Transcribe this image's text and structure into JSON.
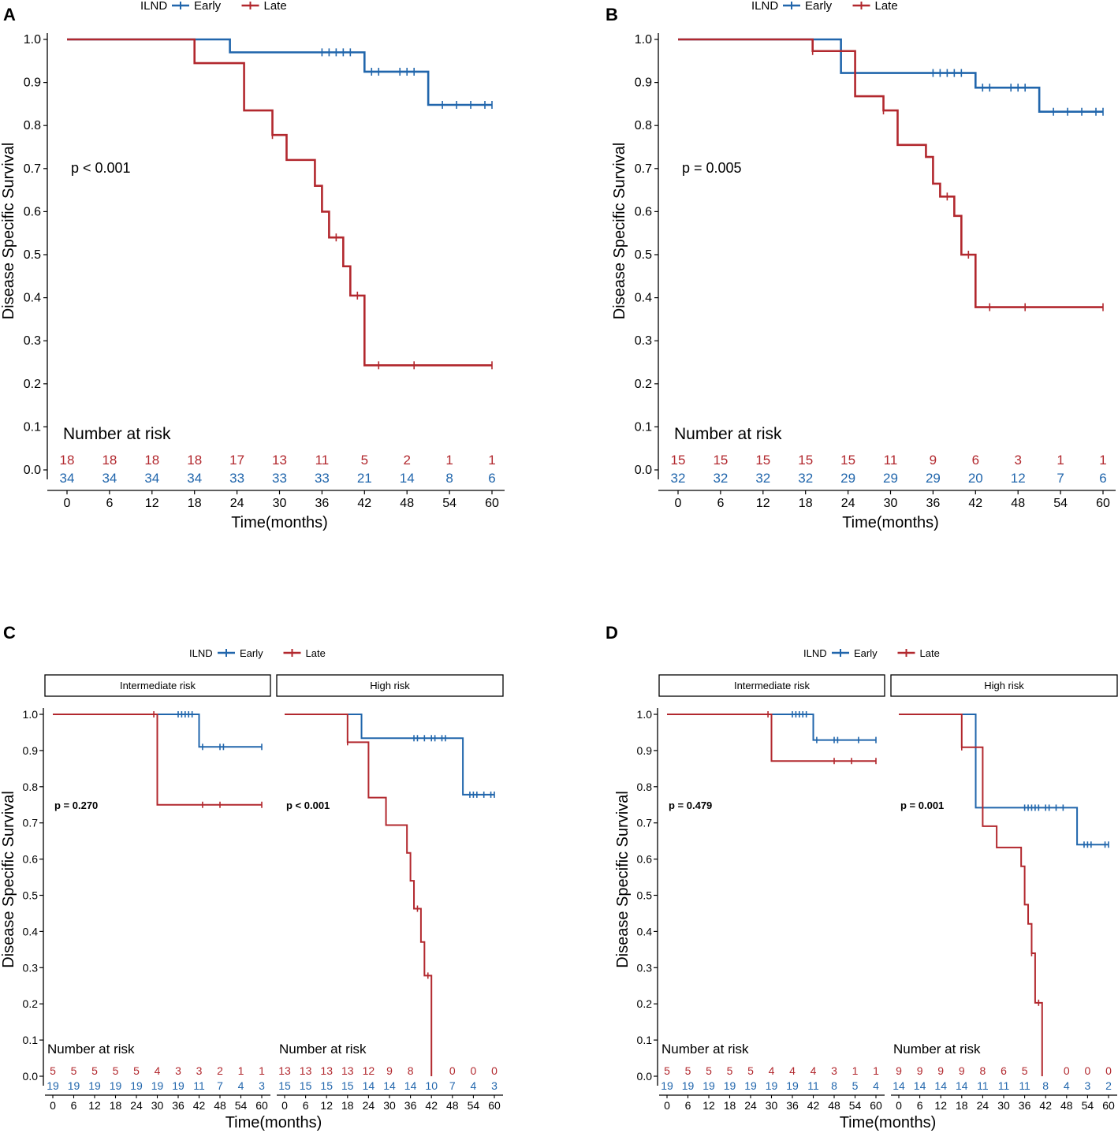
{
  "figure": {
    "legend_title": "ILND",
    "legend_labels": [
      "Early",
      "Late"
    ]
  },
  "chart_data": [
    {
      "panel": "A",
      "type": "line",
      "title": "",
      "xlabel": "Time(months)",
      "ylabel": "Disease Specific Survival",
      "xlim": [
        0,
        60
      ],
      "ylim": [
        0,
        1
      ],
      "x_ticks": [
        "0",
        "6",
        "12",
        "18",
        "24",
        "30",
        "36",
        "42",
        "48",
        "54",
        "60"
      ],
      "y_ticks": [
        "0.0",
        "0.1",
        "0.2",
        "0.3",
        "0.4",
        "0.5",
        "0.6",
        "0.7",
        "0.8",
        "0.9",
        "1.0"
      ],
      "p_value": "p < 0.001",
      "risk_title": "Number at risk",
      "risk_table": {
        "Late": [
          "18",
          "18",
          "18",
          "18",
          "17",
          "13",
          "11",
          "5",
          "2",
          "1",
          "1"
        ],
        "Early": [
          "34",
          "34",
          "34",
          "34",
          "33",
          "33",
          "33",
          "21",
          "14",
          "8",
          "6"
        ]
      },
      "series": [
        {
          "name": "Early",
          "color": "#2166ac",
          "steps": [
            [
              0,
              1.0
            ],
            [
              23,
              0.97
            ],
            [
              42,
              0.925
            ],
            [
              51,
              0.848
            ]
          ],
          "end": 60,
          "censor": [
            36,
            37,
            38,
            39,
            40,
            43,
            44,
            47,
            48,
            49,
            53,
            55,
            57,
            59,
            60
          ]
        },
        {
          "name": "Late",
          "color": "#b2282e",
          "steps": [
            [
              0,
              1.0
            ],
            [
              18,
              0.945
            ],
            [
              25,
              0.835
            ],
            [
              29,
              0.778
            ],
            [
              31,
              0.72
            ],
            [
              35,
              0.66
            ],
            [
              36,
              0.6
            ],
            [
              37,
              0.54
            ],
            [
              39,
              0.473
            ],
            [
              40,
              0.405
            ],
            [
              42,
              0.243
            ]
          ],
          "end": 60,
          "censor": [
            29,
            38,
            41,
            44,
            49,
            60
          ]
        }
      ]
    },
    {
      "panel": "B",
      "type": "line",
      "title": "",
      "xlabel": "Time(months)",
      "ylabel": "Disease Specific Survival",
      "xlim": [
        0,
        60
      ],
      "ylim": [
        0,
        1
      ],
      "x_ticks": [
        "0",
        "6",
        "12",
        "18",
        "24",
        "30",
        "36",
        "42",
        "48",
        "54",
        "60"
      ],
      "y_ticks": [
        "0.0",
        "0.1",
        "0.2",
        "0.3",
        "0.4",
        "0.5",
        "0.6",
        "0.7",
        "0.8",
        "0.9",
        "1.0"
      ],
      "p_value": "p = 0.005",
      "risk_title": "Number at risk",
      "risk_table": {
        "Late": [
          "15",
          "15",
          "15",
          "15",
          "15",
          "11",
          "9",
          "6",
          "3",
          "1",
          "1"
        ],
        "Early": [
          "32",
          "32",
          "32",
          "32",
          "29",
          "29",
          "29",
          "20",
          "12",
          "7",
          "6"
        ]
      },
      "series": [
        {
          "name": "Early",
          "color": "#2166ac",
          "steps": [
            [
              0,
              1.0
            ],
            [
              23,
              0.922
            ],
            [
              42,
              0.888
            ],
            [
              51,
              0.832
            ]
          ],
          "end": 60,
          "censor": [
            36,
            37,
            38,
            39,
            40,
            43,
            44,
            47,
            48,
            49,
            53,
            55,
            57,
            59,
            60
          ]
        },
        {
          "name": "Late",
          "color": "#b2282e",
          "steps": [
            [
              0,
              1.0
            ],
            [
              19,
              0.973
            ],
            [
              25,
              0.868
            ],
            [
              29,
              0.835
            ],
            [
              31,
              0.755
            ],
            [
              35,
              0.727
            ],
            [
              36,
              0.665
            ],
            [
              37,
              0.635
            ],
            [
              39,
              0.59
            ],
            [
              40,
              0.5
            ],
            [
              42,
              0.378
            ]
          ],
          "end": 60,
          "censor": [
            19,
            29,
            38,
            41,
            44,
            49,
            60
          ]
        }
      ]
    },
    {
      "panel": "C",
      "type": "line",
      "title": "",
      "xlabel": "Time(months)",
      "ylabel": "Disease Specific Survival",
      "ylim": [
        0,
        1
      ],
      "y_ticks": [
        "0.0",
        "0.1",
        "0.2",
        "0.3",
        "0.4",
        "0.5",
        "0.6",
        "0.7",
        "0.8",
        "0.9",
        "1.0"
      ],
      "facets": [
        {
          "strip": "Intermediate risk",
          "xlim": [
            0,
            60
          ],
          "p_value": "p = 0.270",
          "x_ticks": [
            "0",
            "6",
            "12",
            "18",
            "24",
            "30",
            "36",
            "42",
            "48",
            "54",
            "60"
          ],
          "risk_title": "Number at risk",
          "risk_table": {
            "Late": [
              "5",
              "5",
              "5",
              "5",
              "5",
              "4",
              "3",
              "3",
              "2",
              "1",
              "1"
            ],
            "Early": [
              "19",
              "19",
              "19",
              "19",
              "19",
              "19",
              "19",
              "11",
              "7",
              "4",
              "3"
            ]
          },
          "series": [
            {
              "name": "Early",
              "color": "#2166ac",
              "steps": [
                [
                  0,
                  1.0
                ],
                [
                  42,
                  0.91
                ]
              ],
              "end": 60,
              "censor": [
                36,
                37,
                38,
                39,
                40,
                43,
                48,
                49,
                60
              ]
            },
            {
              "name": "Late",
              "color": "#b2282e",
              "steps": [
                [
                  0,
                  1.0
                ],
                [
                  30,
                  0.75
                ]
              ],
              "end": 60,
              "censor": [
                29,
                43,
                48,
                60
              ]
            }
          ]
        },
        {
          "strip": "High risk",
          "xlim": [
            0,
            60
          ],
          "p_value": "p < 0.001",
          "x_ticks": [
            "0",
            "6",
            "12",
            "18",
            "24",
            "30",
            "36",
            "42",
            "48",
            "54",
            "60"
          ],
          "risk_title": "Number at risk",
          "risk_table": {
            "Late": [
              "13",
              "13",
              "13",
              "13",
              "12",
              "9",
              "8",
              "",
              "0",
              "0",
              "0"
            ],
            "Early": [
              "15",
              "15",
              "15",
              "15",
              "14",
              "14",
              "14",
              "10",
              "7",
              "4",
              "3"
            ]
          },
          "series": [
            {
              "name": "Early",
              "color": "#2166ac",
              "steps": [
                [
                  0,
                  1.0
                ],
                [
                  22,
                  0.934
                ],
                [
                  51,
                  0.778
                ]
              ],
              "end": 60,
              "censor": [
                37,
                38,
                40,
                42,
                43,
                45,
                46,
                53,
                54,
                55,
                57,
                59,
                60
              ]
            },
            {
              "name": "Late",
              "color": "#b2282e",
              "steps": [
                [
                  0,
                  1.0
                ],
                [
                  18,
                  0.923
                ],
                [
                  24,
                  0.77
                ],
                [
                  29,
                  0.694
                ],
                [
                  35,
                  0.617
                ],
                [
                  36,
                  0.54
                ],
                [
                  37,
                  0.463
                ],
                [
                  39,
                  0.371
                ],
                [
                  40,
                  0.278
                ],
                [
                  42,
                  0.0
                ]
              ],
              "end": 42,
              "censor": [
                18,
                38,
                41
              ]
            }
          ]
        }
      ]
    },
    {
      "panel": "D",
      "type": "line",
      "title": "",
      "xlabel": "Time(months)",
      "ylabel": "Disease Specific Survival",
      "ylim": [
        0,
        1
      ],
      "y_ticks": [
        "0.0",
        "0.1",
        "0.2",
        "0.3",
        "0.4",
        "0.5",
        "0.6",
        "0.7",
        "0.8",
        "0.9",
        "1.0"
      ],
      "facets": [
        {
          "strip": "Intermediate risk",
          "xlim": [
            0,
            60
          ],
          "p_value": "p = 0.479",
          "x_ticks": [
            "0",
            "6",
            "12",
            "18",
            "24",
            "30",
            "36",
            "42",
            "48",
            "54",
            "60"
          ],
          "risk_title": "Number at risk",
          "risk_table": {
            "Late": [
              "5",
              "5",
              "5",
              "5",
              "5",
              "4",
              "4",
              "4",
              "3",
              "1",
              "1"
            ],
            "Early": [
              "19",
              "19",
              "19",
              "19",
              "19",
              "19",
              "19",
              "11",
              "8",
              "5",
              "4"
            ]
          },
          "series": [
            {
              "name": "Early",
              "color": "#2166ac",
              "steps": [
                [
                  0,
                  1.0
                ],
                [
                  42,
                  0.929
                ]
              ],
              "end": 60,
              "censor": [
                36,
                37,
                38,
                39,
                40,
                43,
                48,
                49,
                55,
                60
              ]
            },
            {
              "name": "Late",
              "color": "#b2282e",
              "steps": [
                [
                  0,
                  1.0
                ],
                [
                  30,
                  0.871
                ]
              ],
              "end": 60,
              "censor": [
                29,
                48,
                53,
                60
              ]
            }
          ]
        },
        {
          "strip": "High risk",
          "xlim": [
            0,
            60
          ],
          "p_value": "p = 0.001",
          "x_ticks": [
            "0",
            "6",
            "12",
            "18",
            "24",
            "30",
            "36",
            "42",
            "48",
            "54",
            "60"
          ],
          "risk_title": "Number at risk",
          "risk_table": {
            "Late": [
              "9",
              "9",
              "9",
              "9",
              "8",
              "6",
              "5",
              "",
              "0",
              "0",
              "0"
            ],
            "Early": [
              "14",
              "14",
              "14",
              "14",
              "11",
              "11",
              "11",
              "8",
              "4",
              "3",
              "2"
            ]
          },
          "series": [
            {
              "name": "Early",
              "color": "#2166ac",
              "steps": [
                [
                  0,
                  1.0
                ],
                [
                  22,
                  0.742
                ],
                [
                  51,
                  0.64
                ]
              ],
              "end": 60,
              "censor": [
                36,
                37,
                38,
                39,
                40,
                42,
                43,
                45,
                47,
                53,
                54,
                55,
                59,
                60
              ]
            },
            {
              "name": "Late",
              "color": "#b2282e",
              "steps": [
                [
                  0,
                  1.0
                ],
                [
                  18,
                  0.909
                ],
                [
                  24,
                  0.691
                ],
                [
                  28,
                  0.632
                ],
                [
                  35,
                  0.58
                ],
                [
                  36,
                  0.474
                ],
                [
                  37,
                  0.421
                ],
                [
                  38,
                  0.34
                ],
                [
                  39,
                  0.203
                ],
                [
                  41,
                  0.0
                ]
              ],
              "end": 41,
              "censor": [
                18,
                38,
                40
              ]
            }
          ]
        }
      ]
    }
  ]
}
